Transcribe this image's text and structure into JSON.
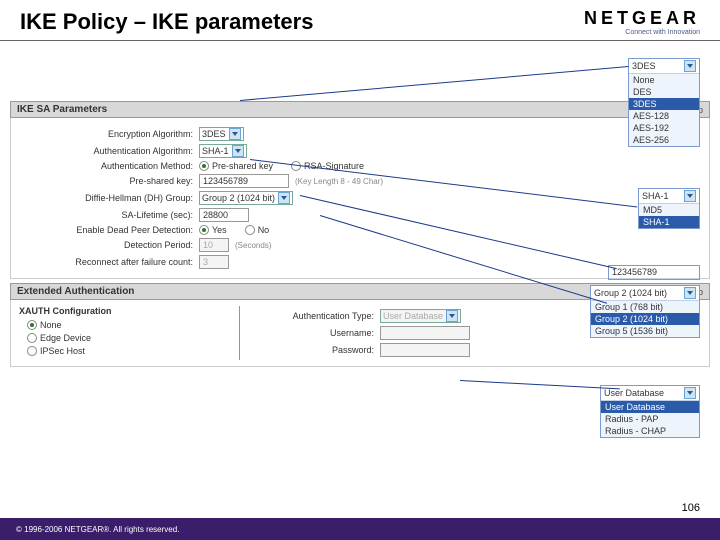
{
  "header": {
    "title": "IKE Policy – IKE parameters",
    "logo": "NETGEAR",
    "tagline": "Connect with Innovation"
  },
  "section1": {
    "title": "IKE SA Parameters",
    "help": "help"
  },
  "params": {
    "encryption_label": "Encryption Algorithm:",
    "encryption_value": "3DES",
    "auth_algo_label": "Authentication Algorithm:",
    "auth_algo_value": "SHA-1",
    "auth_method_label": "Authentication Method:",
    "auth_method_opts": {
      "psk": "Pre-shared key",
      "rsa": "RSA-Signature"
    },
    "psk_label": "Pre-shared key:",
    "psk_value": "123456789",
    "psk_hint": "(Key Length 8 - 49 Char)",
    "dh_label": "Diffie-Hellman (DH) Group:",
    "dh_value": "Group 2 (1024 bit)",
    "sa_label": "SA-Lifetime (sec):",
    "sa_value": "28800",
    "dpd_label": "Enable Dead Peer Detection:",
    "dpd_opts": {
      "yes": "Yes",
      "no": "No"
    },
    "detect_label": "Detection Period:",
    "detect_value": "10",
    "detect_hint": "(Seconds)",
    "reconnect_label": "Reconnect after failure count:",
    "reconnect_value": "3"
  },
  "section2": {
    "title": "Extended Authentication",
    "help": "help"
  },
  "xauth": {
    "title": "XAUTH Configuration",
    "opts": {
      "none": "None",
      "edge": "Edge Device",
      "ipsec": "IPSec Host"
    },
    "authtype_label": "Authentication Type:",
    "authtype_value": "User Database",
    "user_label": "Username:",
    "pass_label": "Password:"
  },
  "callouts": {
    "enc": {
      "head": "3DES",
      "items": [
        "None",
        "DES",
        "3DES",
        "AES-128",
        "AES-192",
        "AES-256"
      ],
      "selected": 2
    },
    "sha": {
      "head": "SHA-1",
      "items": [
        "MD5",
        "SHA-1"
      ],
      "selected": 1
    },
    "psk": {
      "value": "123456789"
    },
    "dh": {
      "head": "Group 2 (1024 bit)",
      "items": [
        "Group 1 (768 bit)",
        "Group 2 (1024 bit)",
        "Group 5 (1536 bit)"
      ],
      "selected": 1
    },
    "authtype": {
      "head": "User Database",
      "items": [
        "User Database",
        "Radius - PAP",
        "Radius - CHAP"
      ],
      "selected": 0
    }
  },
  "footer": {
    "copyright": "© 1996-2006 NETGEAR®. All rights reserved."
  },
  "pagenum": "106"
}
